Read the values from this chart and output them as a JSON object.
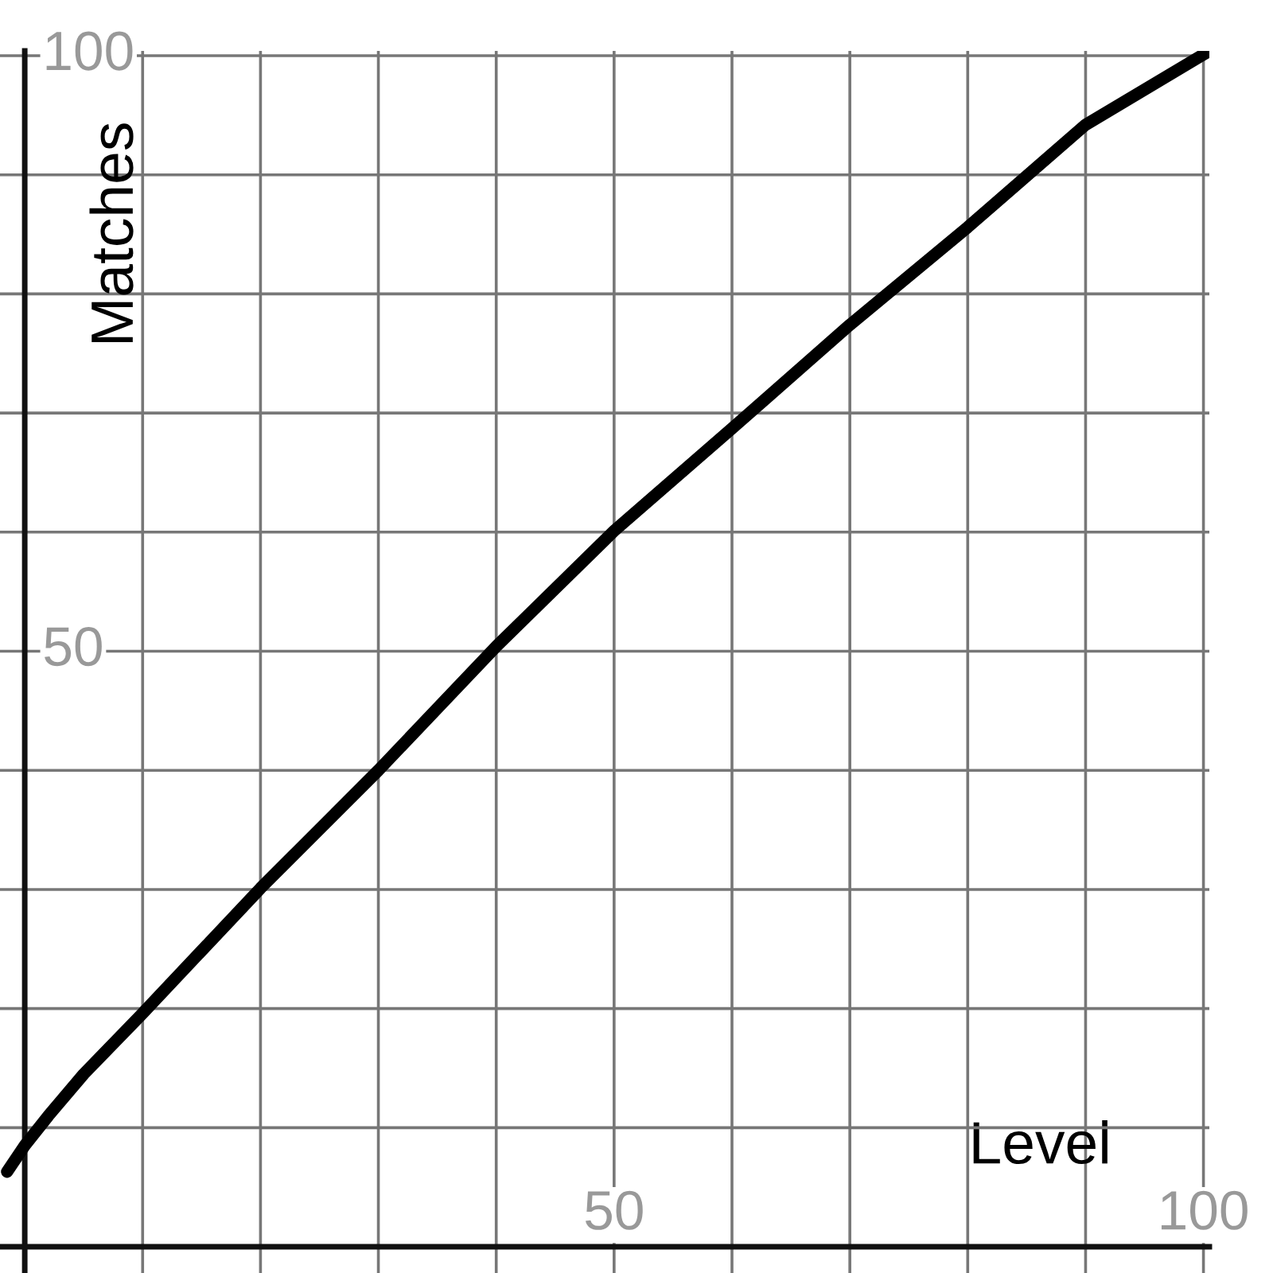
{
  "chart_data": {
    "type": "line",
    "xlabel": "Level",
    "ylabel": "Matches",
    "x": [
      -1.5,
      0,
      2,
      5,
      10,
      20,
      30,
      40,
      50,
      60,
      70,
      80,
      90,
      100,
      100.5
    ],
    "series": [
      {
        "color": "#000000",
        "values": [
          6.3,
          8.5,
          11,
          14.5,
          19.6,
          30.1,
          40.0,
          50.4,
          60.1,
          68.7,
          77.4,
          85.6,
          94.2,
          100.1,
          100.4
        ]
      }
    ],
    "xlim": [
      -2.1,
      100.5
    ],
    "ylim": [
      -2.2,
      100.4
    ],
    "xticks": [
      {
        "value": 10,
        "label": null
      },
      {
        "value": 20,
        "label": null
      },
      {
        "value": 30,
        "label": null
      },
      {
        "value": 40,
        "label": null
      },
      50,
      {
        "value": 60,
        "label": null
      },
      {
        "value": 70,
        "label": null
      },
      {
        "value": 80,
        "label": null
      },
      {
        "value": 90,
        "label": null
      },
      100
    ],
    "yticks": [
      {
        "value": 10,
        "label": null
      },
      {
        "value": 20,
        "label": null
      },
      {
        "value": 30,
        "label": null
      },
      {
        "value": 40,
        "label": null
      },
      50,
      {
        "value": 60,
        "label": null
      },
      {
        "value": 70,
        "label": null
      },
      {
        "value": 80,
        "label": null
      },
      {
        "value": 90,
        "label": null
      },
      100
    ],
    "grid": true,
    "marker": "none",
    "line_style": "solid"
  }
}
